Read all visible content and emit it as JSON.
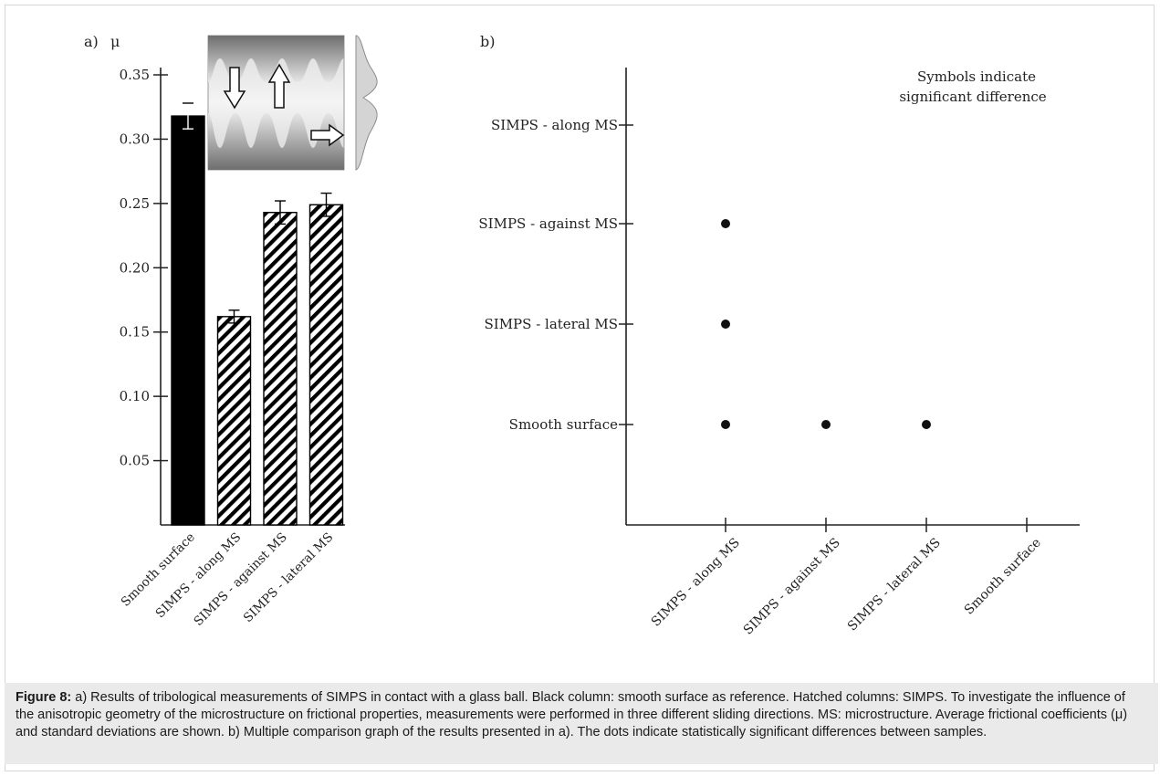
{
  "panel_a": {
    "label": "a)",
    "yunit": "μ"
  },
  "panel_b": {
    "label": "b)",
    "annotation_line1": "Symbols indicate",
    "annotation_line2": "significant difference"
  },
  "chart_data": [
    {
      "type": "bar",
      "panel": "a)",
      "ylabel": "μ",
      "xlabel": "",
      "categories": [
        "Smooth surface",
        "SIMPS - along MS",
        "SIMPS - against MS",
        "SIMPS - lateral MS"
      ],
      "values": [
        0.318,
        0.162,
        0.243,
        0.249
      ],
      "errors": [
        0.01,
        0.005,
        0.009,
        0.009
      ],
      "fills": [
        "solid",
        "hatched",
        "hatched",
        "hatched"
      ],
      "colors": {
        "solid": "#000000",
        "hatch": "#000000"
      },
      "ylim": [
        0,
        0.35
      ],
      "yticks": [
        "0.05",
        "0.10",
        "0.15",
        "0.20",
        "0.25",
        "0.30",
        "0.35"
      ],
      "ytick_values": [
        0.05,
        0.1,
        0.15,
        0.2,
        0.25,
        0.3,
        0.35
      ],
      "grid": false,
      "legend": "none"
    },
    {
      "type": "scatter",
      "panel": "b)",
      "x_categories": [
        "SIMPS - along MS",
        "SIMPS - against MS",
        "SIMPS - lateral MS",
        "Smooth surface"
      ],
      "y_categories": [
        "Smooth surface",
        "SIMPS - lateral MS",
        "SIMPS - against MS",
        "SIMPS - along MS"
      ],
      "points": [
        {
          "x": "SIMPS - along MS",
          "y": "SIMPS - against MS"
        },
        {
          "x": "SIMPS - along MS",
          "y": "SIMPS - lateral MS"
        },
        {
          "x": "SIMPS - along MS",
          "y": "Smooth surface"
        },
        {
          "x": "SIMPS - against MS",
          "y": "Smooth surface"
        },
        {
          "x": "SIMPS - lateral MS",
          "y": "Smooth surface"
        }
      ],
      "annotation": "Symbols indicate significant difference",
      "grid": false,
      "legend": "none"
    }
  ],
  "caption": {
    "label": "Figure 8:",
    "text": " a) Results of tribological measurements of SIMPS in contact with a glass ball. Black column: smooth surface as reference. Hatched columns: SIMPS. To investigate the influence of the anisotropic geometry of the microstructure on frictional properties, measurements were performed in three different sliding directions. MS: microstructure. Average frictional coefficients (μ) and standard deviations are shown. b) Multiple comparison graph of the results presented in a). The dots indicate statistically significant differences between samples."
  }
}
